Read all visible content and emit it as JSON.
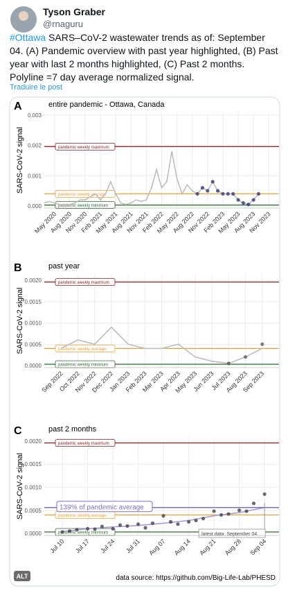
{
  "tweet": {
    "author": "Tyson Graber",
    "handle": "@rnaguru",
    "hashtag": "#Ottawa",
    "text": "SARS–CoV-2 wastewater trends as of: September 04. (A) Pandemic overview with past year highlighted, (B) Past year with last 2 months highlighted, (C) Past 2 months. Polyline =7 day average normalized signal.",
    "translate": "Traduire le post"
  },
  "image": {
    "alt_badge": "ALT",
    "source": "data source: https://github.com/Big-Life-Lab/PHESD"
  },
  "chart_data": [
    {
      "type": "line",
      "panel": "A",
      "title": "entire pandemic - Ottawa, Canada",
      "y_label": "SARS-CoV-2 signal",
      "grid": true,
      "xlim": [
        "2020-03",
        "2024-01"
      ],
      "ylim": [
        -7e-05,
        0.00309
      ],
      "xticks": [
        {
          "value": "2020-05",
          "label": "May 2020"
        },
        {
          "value": "2020-08",
          "label": "Aug 2020"
        },
        {
          "value": "2020-11",
          "label": "Nov 2020"
        },
        {
          "value": "2021-02",
          "label": "Feb 2021"
        },
        {
          "value": "2021-05",
          "label": "May 2021"
        },
        {
          "value": "2021-08",
          "label": "Aug 2021"
        },
        {
          "value": "2021-11",
          "label": "Nov 2021"
        },
        {
          "value": "2022-02",
          "label": "Feb 2022"
        },
        {
          "value": "2022-05",
          "label": "May 2022"
        },
        {
          "value": "2022-08",
          "label": "Aug 2022"
        },
        {
          "value": "2022-11",
          "label": "Nov 2022"
        },
        {
          "value": "2023-02",
          "label": "Feb 2023"
        },
        {
          "value": "2023-05",
          "label": "May 2023"
        },
        {
          "value": "2023-08",
          "label": "Aug 2023"
        },
        {
          "value": "2023-11",
          "label": "Nov 2023"
        }
      ],
      "yticks": [
        {
          "value": 0,
          "label": "0.000"
        },
        0.001,
        0.002,
        0.003
      ],
      "reference_lines": [
        {
          "label": "pandemic weekly maximum",
          "value": 0.00196,
          "color": "#8b1a1a"
        },
        {
          "label": "pandemic weekly average",
          "value": 0.0004,
          "color": "#f0a030"
        },
        {
          "label": "pandemic weekly minimum",
          "value": 3e-05,
          "color": "#2e6b2e"
        }
      ],
      "series": [
        {
          "type": "line",
          "color": "#bdbdbd",
          "x": [
            "2020-03",
            "2020-04",
            "2020-05",
            "2020-06",
            "2020-07",
            "2020-08",
            "2020-09",
            "2020-10",
            "2020-11",
            "2020-12",
            "2021-01",
            "2021-02",
            "2021-03",
            "2021-04",
            "2021-05",
            "2021-06",
            "2021-07",
            "2021-08",
            "2021-09",
            "2021-10",
            "2021-11",
            "2021-12",
            "2022-01",
            "2022-02",
            "2022-03",
            "2022-04",
            "2022-05",
            "2022-06",
            "2022-07",
            "2022-08",
            "2022-09",
            "2022-10",
            "2022-11",
            "2022-12",
            "2023-01",
            "2023-02",
            "2023-03",
            "2023-04",
            "2023-05",
            "2023-06",
            "2023-07",
            "2023-08",
            "2023-09"
          ],
          "values": [
            0.0001,
            0.00015,
            0.0001,
            5e-05,
            5e-05,
            5e-05,
            0.0001,
            0.0002,
            0.0002,
            0.0003,
            0.0004,
            0.0002,
            0.0004,
            0.0008,
            0.0004,
            0.0001,
            5e-05,
            0.0001,
            0.0002,
            0.00015,
            0.0002,
            0.0006,
            0.0012,
            0.0006,
            0.0008,
            0.0018,
            0.0009,
            0.0004,
            0.0007,
            0.0005,
            0.0004,
            0.0006,
            0.0005,
            0.0008,
            0.0005,
            0.0004,
            0.0004,
            0.0004,
            0.0002,
            0.0001,
            5e-05,
            0.0002,
            0.0004
          ]
        },
        {
          "type": "scatter",
          "color": "#2b2f7a",
          "x": [
            "2022-09",
            "2022-10",
            "2022-11",
            "2022-12",
            "2023-01",
            "2023-02",
            "2023-03",
            "2023-04",
            "2023-05",
            "2023-06",
            "2023-07",
            "2023-08",
            "2023-09"
          ],
          "values": [
            0.0004,
            0.0006,
            0.0005,
            0.0008,
            0.0005,
            0.0004,
            0.0004,
            0.0004,
            0.0002,
            0.0001,
            5e-05,
            0.0002,
            0.0004
          ]
        }
      ]
    },
    {
      "type": "line",
      "panel": "B",
      "title": "past year",
      "y_label": "SARS-CoV-2 signal",
      "grid": true,
      "xlim": [
        "2022-08",
        "2023-10"
      ],
      "ylim": [
        -5e-05,
        0.00215
      ],
      "xticks": [
        {
          "value": "2022-09",
          "label": "Sep 2022"
        },
        {
          "value": "2022-10",
          "label": "Oct 2022"
        },
        {
          "value": "2022-11",
          "label": "Nov 2022"
        },
        {
          "value": "2022-12",
          "label": "Dec 2022"
        },
        {
          "value": "2023-01",
          "label": "Jan 2023"
        },
        {
          "value": "2023-02",
          "label": "Feb 2023"
        },
        {
          "value": "2023-03",
          "label": "Mar 2023"
        },
        {
          "value": "2023-04",
          "label": "Apr 2023"
        },
        {
          "value": "2023-05",
          "label": "May 2023"
        },
        {
          "value": "2023-06",
          "label": "Jun 2023"
        },
        {
          "value": "2023-07",
          "label": "Jul 2023"
        },
        {
          "value": "2023-08",
          "label": "Aug 2023"
        },
        {
          "value": "2023-09",
          "label": "Sep 2023"
        }
      ],
      "yticks": [
        {
          "value": 0,
          "label": "0.0000"
        },
        0.0005,
        {
          "value": 0.001,
          "label": "0.0010"
        },
        0.0015,
        {
          "value": 0.002,
          "label": "0.0020"
        }
      ],
      "reference_lines": [
        {
          "label": "pandemic weekly maximum",
          "value": 0.00196,
          "color": "#8b1a1a"
        },
        {
          "label": "pandemic weekly average",
          "value": 0.0004,
          "color": "#f0a030"
        },
        {
          "label": "pandemic weekly minimum",
          "value": 3e-05,
          "color": "#2e6b2e"
        }
      ],
      "series": [
        {
          "type": "line",
          "color": "#bdbdbd",
          "x": [
            "2022-09",
            "2022-10",
            "2022-11",
            "2022-12",
            "2023-01",
            "2023-02",
            "2023-03",
            "2023-04",
            "2023-05",
            "2023-06",
            "2023-07",
            "2023-08",
            "2023-09"
          ],
          "values": [
            0.0004,
            0.0006,
            0.0005,
            0.0009,
            0.0005,
            0.0004,
            0.0004,
            0.0005,
            0.0002,
            0.0001,
            5e-05,
            0.0002,
            0.0004
          ]
        },
        {
          "type": "scatter",
          "color": "#555555",
          "x": [
            "2023-07",
            "2023-08",
            "2023-09"
          ],
          "values": [
            5e-05,
            0.0002,
            0.0005
          ]
        }
      ]
    },
    {
      "type": "line",
      "panel": "C",
      "title": "past 2 months",
      "y_label": "SARS-CoV-2 signal",
      "grid": true,
      "xlim": [
        "07-05",
        "09-08"
      ],
      "ylim": [
        -4.5e-05,
        0.00209
      ],
      "xticks": [
        {
          "value": "07-10",
          "label": "Jul 10"
        },
        {
          "value": "07-17",
          "label": "Jul 17"
        },
        {
          "value": "07-24",
          "label": "Jul 24"
        },
        {
          "value": "07-31",
          "label": "Jul 31"
        },
        {
          "value": "08-07",
          "label": "Aug 07"
        },
        {
          "value": "08-14",
          "label": "Aug 14"
        },
        {
          "value": "08-21",
          "label": "Aug 21"
        },
        {
          "value": "08-28",
          "label": "Aug 28"
        },
        {
          "value": "09-04",
          "label": "Sep 04"
        }
      ],
      "yticks": [
        {
          "value": 0,
          "label": "0.0000"
        },
        0.0005,
        {
          "value": 0.001,
          "label": "0.0010"
        },
        0.0015,
        {
          "value": 0.002,
          "label": "0.0020"
        }
      ],
      "reference_lines": [
        {
          "label": "pandemic weekly maximum",
          "value": 0.00196,
          "color": "#8b1a1a"
        },
        {
          "label": "pandemic weekly average",
          "value": 0.0004,
          "color": "#f0a030"
        },
        {
          "label": "pandemic weekly minimum",
          "value": 3e-05,
          "color": "#2e6b2e"
        }
      ],
      "annotations": [
        {
          "text": "139% of pandemic average",
          "value": 0.00056,
          "color": "#7b6fc9"
        },
        {
          "text": "latest data: September 04",
          "x": "09-04"
        }
      ],
      "series": [
        {
          "type": "line",
          "color": "#a99be0",
          "x": [
            "07-10",
            "07-17",
            "07-24",
            "07-31",
            "08-07",
            "08-14",
            "08-21",
            "08-28",
            "09-04"
          ],
          "values": [
            4e-05,
            0.0001,
            0.00014,
            0.00017,
            0.00022,
            0.00028,
            0.00038,
            0.00045,
            0.00056
          ]
        },
        {
          "type": "scatter",
          "color": "#3a3a3a",
          "x": [
            "07-10",
            "07-12",
            "07-14",
            "07-17",
            "07-19",
            "07-21",
            "07-24",
            "07-26",
            "07-28",
            "07-31",
            "08-02",
            "08-04",
            "08-07",
            "08-09",
            "08-11",
            "08-14",
            "08-16",
            "08-18",
            "08-21",
            "08-23",
            "08-25",
            "08-28",
            "08-30",
            "09-01",
            "09-04"
          ],
          "values": [
            3e-05,
            5e-05,
            8e-05,
            0.0001,
            9e-05,
            0.00015,
            0.0001,
            0.00018,
            0.00016,
            0.0002,
            0.00012,
            0.00022,
            0.00038,
            0.00025,
            0.0002,
            0.00025,
            0.00028,
            0.00032,
            0.00048,
            0.0004,
            0.00042,
            0.0005,
            0.00048,
            0.00065,
            0.00085
          ]
        }
      ]
    }
  ]
}
